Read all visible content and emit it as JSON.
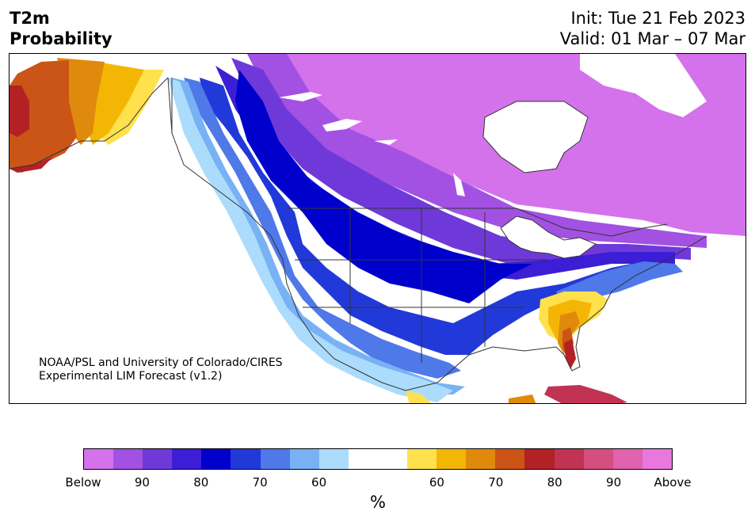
{
  "header": {
    "variable": "T2m",
    "product": "Probability",
    "init": "Init: Tue 21 Feb 2023",
    "valid": "Valid: 01 Mar – 07 Mar"
  },
  "credit": {
    "line1": "NOAA/PSL and University of Colorado/CIRES",
    "line2": "Experimental LIM Forecast (v1.2)"
  },
  "colorbar": {
    "colors": [
      "#d472ec",
      "#a251e2",
      "#6f39d9",
      "#3b1ed5",
      "#0000cd",
      "#2239d9",
      "#4f78e8",
      "#78b2f5",
      "#acdcfc",
      "#ffffff",
      "#ffffff",
      "#ffe14d",
      "#f4b605",
      "#e08a0d",
      "#cb5417",
      "#b32124",
      "#c13352",
      "#d44f7f",
      "#df63ad",
      "#e878de"
    ],
    "labels": [
      "Below",
      "90",
      "80",
      "70",
      "60",
      "60",
      "70",
      "80",
      "90",
      "Above"
    ],
    "unit": "%"
  },
  "map_colors": {
    "below_90": "#d472ec",
    "below_85": "#a251e2",
    "below_80": "#6f39d9",
    "below_75": "#3b1ed5",
    "below_70": "#0000cd",
    "below_65": "#2239d9",
    "below_60": "#4f78e8",
    "below_55": "#78b2f5",
    "below_50": "#acdcfc",
    "neutral": "#ffffff",
    "above_50": "#ffe14d",
    "above_55": "#f4b605",
    "above_60": "#e08a0d",
    "above_65": "#cb5417",
    "above_70": "#b32124",
    "above_75": "#c13352",
    "above_80": "#d44f7f"
  }
}
